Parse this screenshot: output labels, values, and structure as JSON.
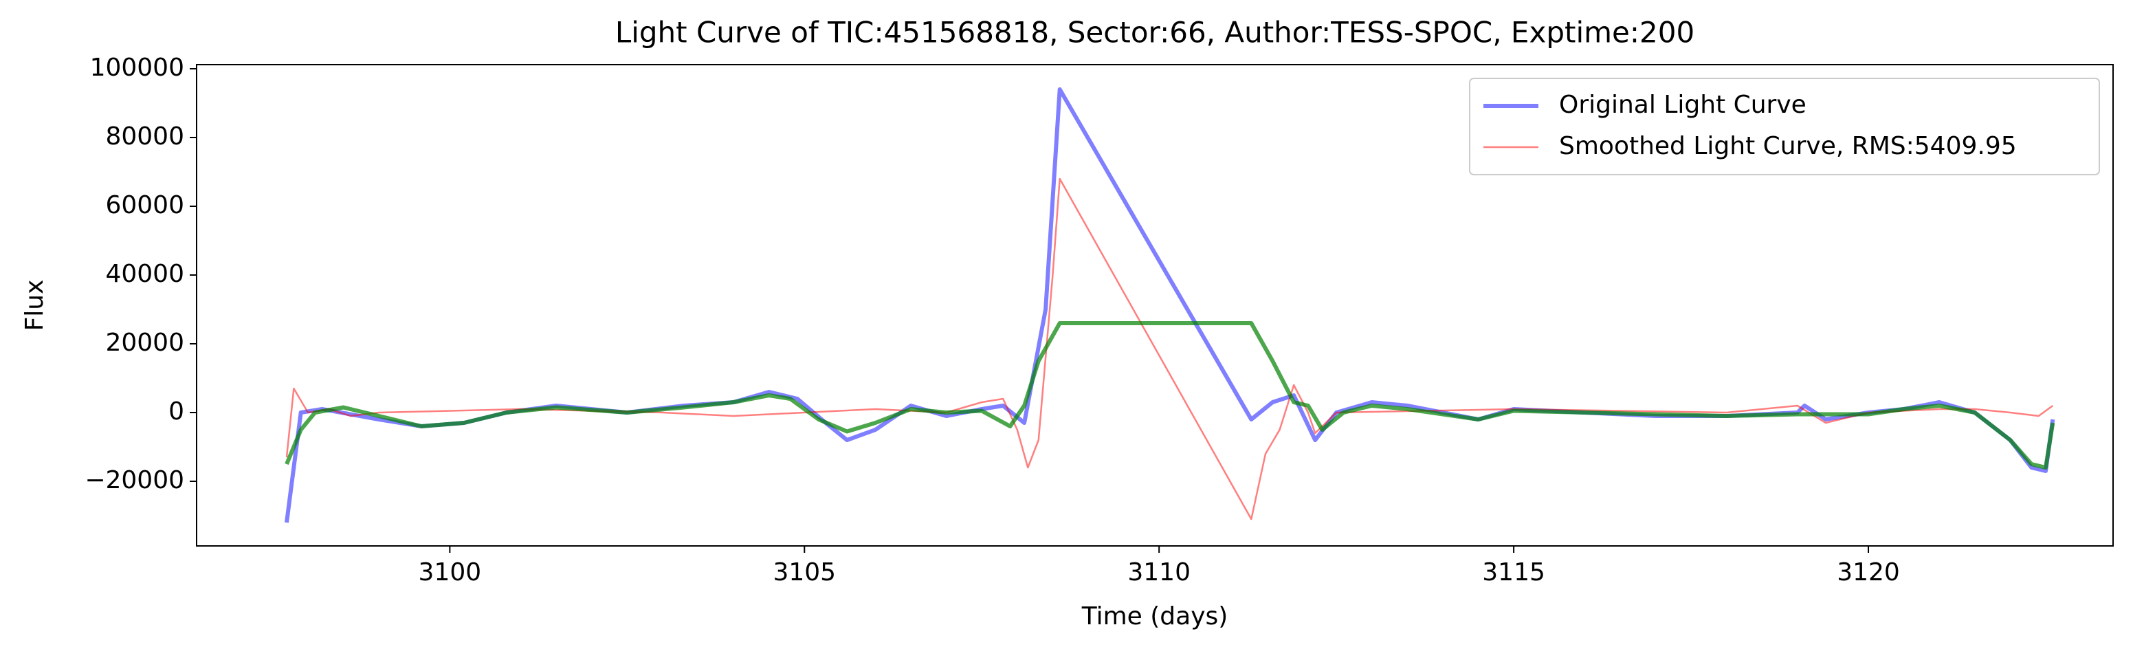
{
  "chart_data": {
    "type": "line",
    "title": "Light Curve of TIC:451568818, Sector:66, Author:TESS-SPOC, Exptime:200",
    "xlabel": "Time (days)",
    "ylabel": "Flux",
    "xlim": [
      3096.43,
      3123.45
    ],
    "ylim": [
      -38800,
      101200
    ],
    "xticks": [
      3100,
      3105,
      3110,
      3115,
      3120
    ],
    "yticks": [
      {
        "value": -20000,
        "label": "−20000"
      },
      0,
      20000,
      40000,
      60000,
      80000,
      100000
    ],
    "legend": "upper right",
    "series": [
      {
        "name": "Original Light Curve",
        "color": "#0000ff",
        "opacity": 0.5,
        "width": 6,
        "x": [
          3097.7,
          3097.9,
          3098.2,
          3099,
          3099.6,
          3100.2,
          3100.8,
          3101.5,
          3102.5,
          3103.3,
          3104,
          3104.5,
          3104.9,
          3105.3,
          3105.6,
          3106,
          3106.5,
          3107,
          3107.5,
          3107.8,
          3108.1,
          3108.4,
          3108.6,
          3111.3,
          3111.6,
          3111.9,
          3112.2,
          3112.5,
          3113,
          3113.5,
          3114.5,
          3115,
          3116,
          3117,
          3118,
          3119,
          3119.1,
          3119.4,
          3120,
          3120.5,
          3121,
          3121.5,
          3122,
          3122.3,
          3122.5,
          3122.6
        ],
        "values": [
          -32000,
          0,
          1000,
          -2000,
          -4000,
          -3000,
          0,
          2000,
          0,
          2000,
          3000,
          6000,
          4000,
          -3000,
          -8000,
          -5000,
          2000,
          -1000,
          1000,
          2000,
          -3000,
          30000,
          94000,
          -2000,
          3000,
          5000,
          -8000,
          0,
          3000,
          2000,
          -2000,
          1000,
          0,
          -1000,
          -1000,
          0,
          2000,
          -2000,
          0,
          1000,
          3000,
          0,
          -8000,
          -16000,
          -17000,
          -2000
        ]
      },
      {
        "name": "Smoothed Light Curve, RMS:5409.95",
        "color": "#ff0000",
        "opacity": 0.5,
        "width": 2.5,
        "x": [
          3097.7,
          3097.8,
          3098,
          3098.3,
          3098.6,
          3099,
          3101,
          3103,
          3104,
          3105,
          3106,
          3107,
          3107.5,
          3107.8,
          3108,
          3108.15,
          3108.3,
          3108.5,
          3108.6,
          3111.3,
          3111.5,
          3111.7,
          3111.9,
          3112.1,
          3112.2,
          3112.5,
          3115,
          3118,
          3119,
          3119.4,
          3120,
          3121,
          3121.5,
          3122,
          3122.4,
          3122.6
        ],
        "values": [
          -13000,
          7000,
          0,
          1000,
          -1000,
          0,
          1000,
          0,
          -1000,
          0,
          1000,
          0,
          3000,
          4000,
          -5000,
          -16000,
          -8000,
          40000,
          68000,
          -31000,
          -12000,
          -5000,
          8000,
          0,
          -6000,
          0,
          1000,
          0,
          2000,
          -3000,
          0,
          1000,
          1000,
          0,
          -1000,
          2000
        ]
      },
      {
        "color": "#008000",
        "opacity": 0.7,
        "width": 6,
        "x": [
          3097.7,
          3097.9,
          3098.1,
          3098.5,
          3099,
          3099.6,
          3100.2,
          3100.8,
          3101.5,
          3102.5,
          3103.3,
          3104,
          3104.5,
          3104.8,
          3105.2,
          3105.6,
          3106,
          3106.5,
          3107,
          3107.5,
          3107.9,
          3108.1,
          3108.3,
          3108.6,
          3111.3,
          3111.6,
          3111.9,
          3112.1,
          3112.3,
          3112.6,
          3113,
          3113.5,
          3114.5,
          3115,
          3116,
          3117,
          3118,
          3119,
          3120,
          3120.5,
          3121,
          3121.5,
          3122,
          3122.3,
          3122.5,
          3122.6
        ],
        "values": [
          -15000,
          -5000,
          0,
          1500,
          -1000,
          -4000,
          -3000,
          0,
          1500,
          0,
          1500,
          3000,
          5000,
          4000,
          -2000,
          -5500,
          -3000,
          1000,
          0,
          500,
          -4000,
          2000,
          15000,
          26000,
          26000,
          15000,
          3000,
          2000,
          -5000,
          0,
          2000,
          1000,
          -2000,
          500,
          0,
          -500,
          -1000,
          -500,
          -500,
          1000,
          2000,
          0,
          -8000,
          -15000,
          -16000,
          -3000
        ]
      }
    ]
  }
}
